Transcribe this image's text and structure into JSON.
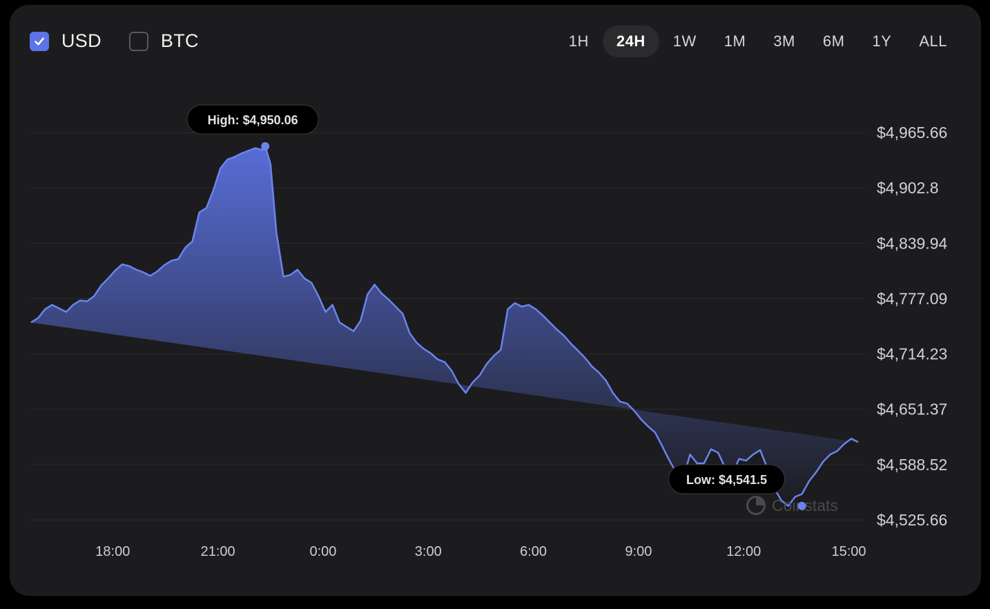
{
  "currency_toggle": {
    "usd": {
      "label": "USD",
      "checked": true
    },
    "btc": {
      "label": "BTC",
      "checked": false
    }
  },
  "time_ranges": [
    "1H",
    "24H",
    "1W",
    "1M",
    "3M",
    "6M",
    "1Y",
    "ALL"
  ],
  "active_range": "24H",
  "watermark": "Coinstats",
  "colors": {
    "line": "#6b84ee",
    "fill_top": "#5b71e0",
    "fill_bottom": "#1c1c1e",
    "grid": "#2c2c2f",
    "active_check": "#5b74e6"
  },
  "chart_data": {
    "type": "area",
    "title": "",
    "xlabel": "",
    "ylabel": "",
    "y_ticks": [
      "$4,965.66",
      "$4,902.8",
      "$4,839.94",
      "$4,777.09",
      "$4,714.23",
      "$4,651.37",
      "$4,588.52",
      "$4,525.66"
    ],
    "y_tick_values": [
      4965.66,
      4902.8,
      4839.94,
      4777.09,
      4714.23,
      4651.37,
      4588.52,
      4525.66
    ],
    "ylim": [
      4525.66,
      4965.66
    ],
    "x_ticks": [
      "18:00",
      "21:00",
      "0:00",
      "3:00",
      "6:00",
      "9:00",
      "12:00",
      "15:00"
    ],
    "x_tick_hours": [
      18,
      21,
      24,
      27,
      30,
      33,
      36,
      39
    ],
    "xlim_hours": [
      15.67,
      39.6
    ],
    "x_unit": "hours (24+ is the next day)",
    "grid": true,
    "legend": "none",
    "annotations": [
      {
        "label": "High: $4,950.06",
        "x_hour": 22.35,
        "value": 4950.06
      },
      {
        "label": "Low: $4,541.5",
        "x_hour": 37.66,
        "value": 4541.5
      }
    ],
    "series": [
      {
        "values_x_hour": [
          15.67,
          15.87,
          16.07,
          16.27,
          16.47,
          16.67,
          16.87,
          17.07,
          17.27,
          17.47,
          17.67,
          17.87,
          18.07,
          18.27,
          18.47,
          18.67,
          18.87,
          19.07,
          19.27,
          19.47,
          19.67,
          19.87,
          20.07,
          20.27,
          20.47,
          20.67,
          20.87,
          21.07,
          21.27,
          21.47,
          21.67,
          21.87,
          22.07,
          22.27,
          22.35,
          22.5,
          22.67,
          22.87,
          23.07,
          23.27,
          23.47,
          23.67,
          23.87,
          24.07,
          24.27,
          24.47,
          24.67,
          24.87,
          25.07,
          25.27,
          25.47,
          25.67,
          25.87,
          26.07,
          26.27,
          26.47,
          26.67,
          26.87,
          27.07,
          27.27,
          27.47,
          27.67,
          27.87,
          28.07,
          28.27,
          28.47,
          28.67,
          28.87,
          29.07,
          29.27,
          29.47,
          29.67,
          29.87,
          30.07,
          30.27,
          30.47,
          30.67,
          30.87,
          31.07,
          31.27,
          31.47,
          31.67,
          31.87,
          32.07,
          32.27,
          32.47,
          32.67,
          32.87,
          33.07,
          33.27,
          33.47,
          33.67,
          33.87,
          34.07,
          34.27,
          34.47,
          34.67,
          34.87,
          35.07,
          35.27,
          35.47,
          35.67,
          35.87,
          36.07,
          36.27,
          36.47,
          36.67,
          36.87,
          37.07,
          37.27,
          37.47,
          37.66,
          37.87,
          38.07,
          38.27,
          38.47,
          38.67,
          38.87,
          39.07,
          39.27,
          39.47,
          39.6
        ],
        "values": [
          4750,
          4755,
          4765,
          4770,
          4766,
          4762,
          4770,
          4775,
          4774,
          4780,
          4792,
          4800,
          4809,
          4816,
          4814,
          4810,
          4807,
          4803,
          4808,
          4815,
          4820,
          4822,
          4835,
          4842,
          4875,
          4880,
          4900,
          4925,
          4935,
          4938,
          4942,
          4945,
          4948,
          4946,
          4950.06,
          4930,
          4852,
          4802,
          4804,
          4810,
          4800,
          4795,
          4780,
          4762,
          4770,
          4750,
          4745,
          4740,
          4752,
          4782,
          4793,
          4783,
          4776,
          4768,
          4760,
          4738,
          4727,
          4720,
          4715,
          4708,
          4705,
          4695,
          4680,
          4670,
          4682,
          4690,
          4703,
          4712,
          4719,
          4765,
          4772,
          4768,
          4770,
          4765,
          4758,
          4750,
          4742,
          4735,
          4726,
          4718,
          4710,
          4700,
          4693,
          4684,
          4670,
          4660,
          4658,
          4650,
          4640,
          4632,
          4625,
          4610,
          4594,
          4580,
          4572,
          4600,
          4590,
          4590,
          4606,
          4602,
          4585,
          4578,
          4595,
          4593,
          4600,
          4605,
          4585,
          4562,
          4548,
          4541.5,
          4552,
          4555,
          4570,
          4580,
          4592,
          4600,
          4604,
          4612,
          4618,
          4614
        ]
      }
    ]
  }
}
